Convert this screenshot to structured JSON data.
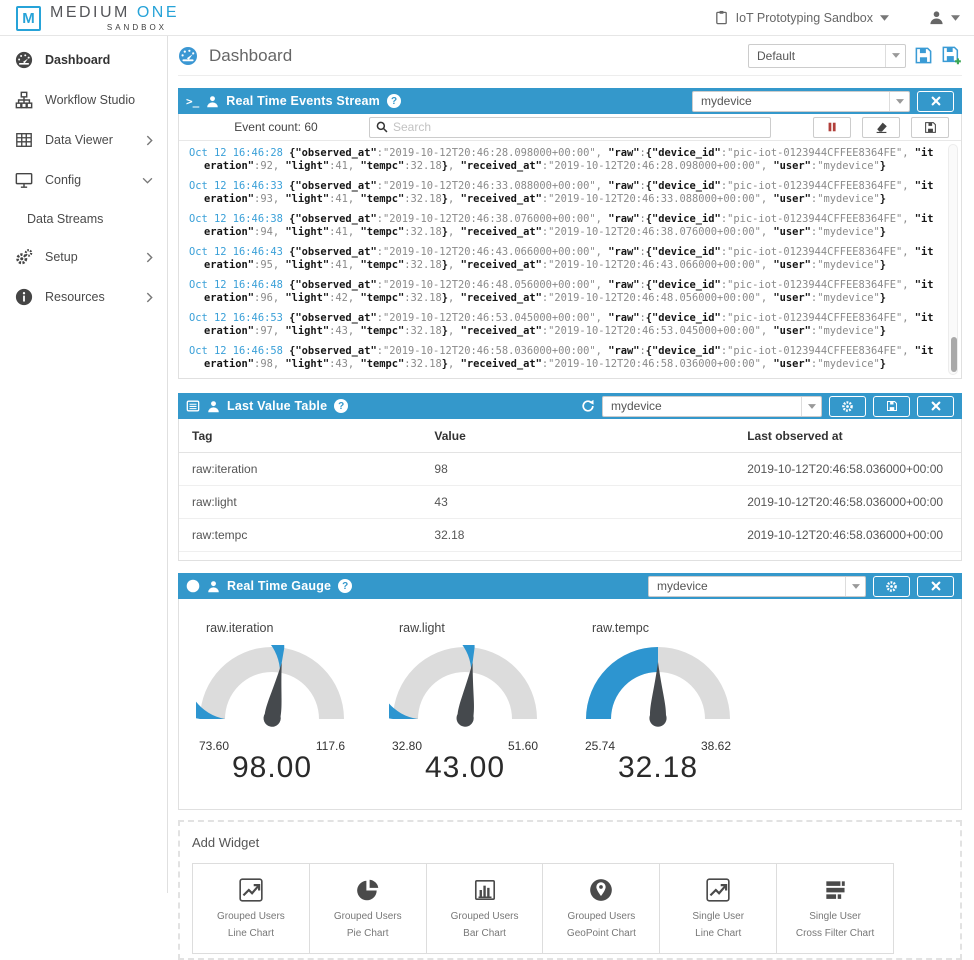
{
  "topbar": {
    "logo_m": "M",
    "brand_medium": "MEDIUM ",
    "brand_one": "ONE",
    "brand_sub": "SANDBOX",
    "sandbox_label": "IoT Prototyping Sandbox"
  },
  "sidebar": {
    "items": [
      {
        "label": "Dashboard",
        "icon": "gauge-icon",
        "chevron": "",
        "active": true,
        "sub": false
      },
      {
        "label": "Workflow Studio",
        "icon": "workflow-icon",
        "chevron": "",
        "active": false,
        "sub": false
      },
      {
        "label": "Data Viewer",
        "icon": "table-icon",
        "chevron": "right",
        "active": false,
        "sub": false
      },
      {
        "label": "Config",
        "icon": "monitor-icon",
        "chevron": "down",
        "active": false,
        "sub": false
      },
      {
        "label": "Data Streams",
        "icon": "",
        "chevron": "",
        "active": false,
        "sub": true
      },
      {
        "label": "Setup",
        "icon": "gears-icon",
        "chevron": "right",
        "active": false,
        "sub": false
      },
      {
        "label": "Resources",
        "icon": "info-icon",
        "chevron": "right",
        "active": false,
        "sub": false
      }
    ]
  },
  "page_header": {
    "title": "Dashboard",
    "preset_value": "Default"
  },
  "events_panel": {
    "title": "Real Time Events Stream",
    "help": "?",
    "device_value": "mydevice",
    "event_count": "Event count: 60",
    "search_placeholder": "Search",
    "logs": [
      {
        "ts": "Oct 12 16:46:28",
        "observed": "2019-10-12T20:46:28.098000+00:00",
        "device_id": "pic-iot-0123944CFFEE8364FE",
        "iteration": 92,
        "light": 41,
        "tempc": "32.18",
        "received": "2019-10-12T20:46:28.098000+00:00",
        "user": "mydevice"
      },
      {
        "ts": "Oct 12 16:46:33",
        "observed": "2019-10-12T20:46:33.088000+00:00",
        "device_id": "pic-iot-0123944CFFEE8364FE",
        "iteration": 93,
        "light": 41,
        "tempc": "32.18",
        "received": "2019-10-12T20:46:33.088000+00:00",
        "user": "mydevice"
      },
      {
        "ts": "Oct 12 16:46:38",
        "observed": "2019-10-12T20:46:38.076000+00:00",
        "device_id": "pic-iot-0123944CFFEE8364FE",
        "iteration": 94,
        "light": 41,
        "tempc": "32.18",
        "received": "2019-10-12T20:46:38.076000+00:00",
        "user": "mydevice"
      },
      {
        "ts": "Oct 12 16:46:43",
        "observed": "2019-10-12T20:46:43.066000+00:00",
        "device_id": "pic-iot-0123944CFFEE8364FE",
        "iteration": 95,
        "light": 41,
        "tempc": "32.18",
        "received": "2019-10-12T20:46:43.066000+00:00",
        "user": "mydevice"
      },
      {
        "ts": "Oct 12 16:46:48",
        "observed": "2019-10-12T20:46:48.056000+00:00",
        "device_id": "pic-iot-0123944CFFEE8364FE",
        "iteration": 96,
        "light": 42,
        "tempc": "32.18",
        "received": "2019-10-12T20:46:48.056000+00:00",
        "user": "mydevice"
      },
      {
        "ts": "Oct 12 16:46:53",
        "observed": "2019-10-12T20:46:53.045000+00:00",
        "device_id": "pic-iot-0123944CFFEE8364FE",
        "iteration": 97,
        "light": 43,
        "tempc": "32.18",
        "received": "2019-10-12T20:46:53.045000+00:00",
        "user": "mydevice"
      },
      {
        "ts": "Oct 12 16:46:58",
        "observed": "2019-10-12T20:46:58.036000+00:00",
        "device_id": "pic-iot-0123944CFFEE8364FE",
        "iteration": 98,
        "light": 43,
        "tempc": "32.18",
        "received": "2019-10-12T20:46:58.036000+00:00",
        "user": "mydevice"
      }
    ]
  },
  "last_value_panel": {
    "title": "Last Value Table",
    "help": "?",
    "device_value": "mydevice",
    "columns": [
      "Tag",
      "Value",
      "Last observed at"
    ],
    "rows": [
      [
        "raw:iteration",
        "98",
        "2019-10-12T20:46:58.036000+00:00"
      ],
      [
        "raw:light",
        "43",
        "2019-10-12T20:46:58.036000+00:00"
      ],
      [
        "raw:tempc",
        "32.18",
        "2019-10-12T20:46:58.036000+00:00"
      ]
    ]
  },
  "gauge_panel": {
    "title": "Real Time Gauge",
    "help": "?",
    "device_value": "mydevice",
    "gauges": [
      {
        "name": "raw.iteration",
        "min": "73.60",
        "max": "117.6",
        "value": "98.00",
        "fraction": 0.5545
      },
      {
        "name": "raw.light",
        "min": "32.80",
        "max": "51.60",
        "value": "43.00",
        "fraction": 0.5426
      },
      {
        "name": "raw.tempc",
        "min": "25.74",
        "max": "38.62",
        "value": "32.18",
        "fraction": 0.5
      }
    ]
  },
  "add_widget": {
    "title": "Add Widget",
    "tiles": [
      {
        "icon": "line-chart-icon",
        "line1": "Grouped Users",
        "line2": "Line Chart"
      },
      {
        "icon": "pie-chart-icon",
        "line1": "Grouped Users",
        "line2": "Pie Chart"
      },
      {
        "icon": "bar-chart-icon",
        "line1": "Grouped Users",
        "line2": "Bar Chart"
      },
      {
        "icon": "geopoint-icon",
        "line1": "Grouped Users",
        "line2": "GeoPoint Chart"
      },
      {
        "icon": "line-chart-icon",
        "line1": "Single User",
        "line2": "Line Chart"
      },
      {
        "icon": "cross-filter-icon",
        "line1": "Single User",
        "line2": "Cross Filter Chart"
      }
    ]
  },
  "colors": {
    "accent_blue": "#3498cb",
    "gauge_blue": "#2d95d0",
    "gauge_gray": "#dcdcdc",
    "needle_gray": "#45494d",
    "timestamp_blue": "#3aa0d8",
    "pause_red": "#b13f3a"
  }
}
